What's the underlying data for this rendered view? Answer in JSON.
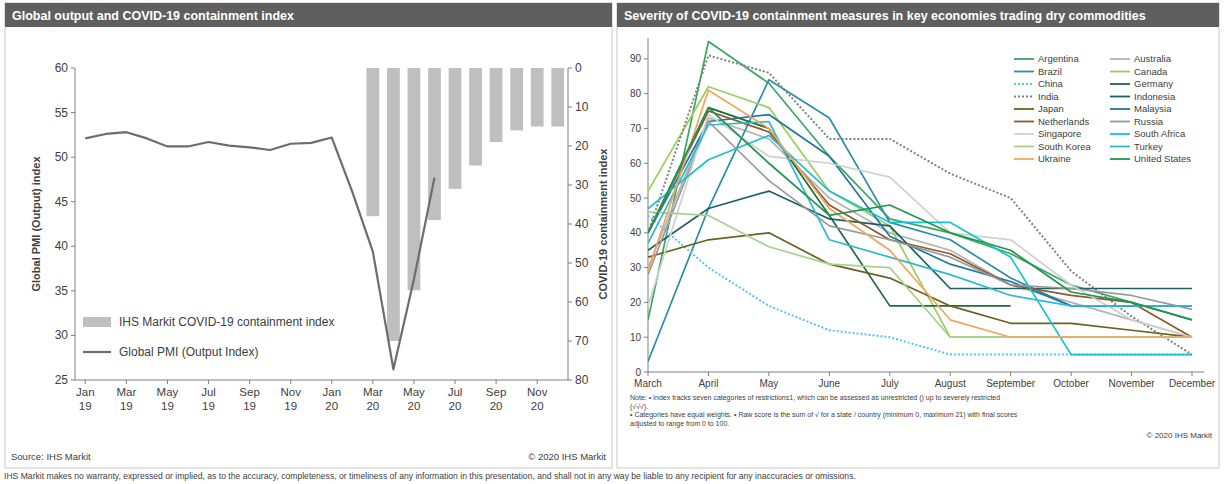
{
  "chart_data": [
    {
      "type": "bar",
      "title": "Global output and COVID-19 containment index",
      "ylabel": "Global PMI (Output) index",
      "y2label": "COVID-19 containment index",
      "source": "Source: IHS Markit",
      "copyright": "© 2020 IHS Markit",
      "categories": [
        "Jan 19",
        null,
        "Mar 19",
        null,
        "May 19",
        null,
        "Jul 19",
        null,
        "Sep 19",
        null,
        "Nov 19",
        null,
        "Jan 20",
        null,
        "Mar 20",
        null,
        "May 20",
        null,
        "Jul 20",
        null,
        "Sep 20",
        null,
        "Nov 20",
        null
      ],
      "series": [
        {
          "name": "IHS Markit COVID-19 containment index",
          "type": "bar",
          "axis": "y2",
          "color": "#bfbfbf",
          "values": [
            null,
            null,
            null,
            null,
            null,
            null,
            null,
            null,
            null,
            null,
            null,
            null,
            null,
            null,
            38,
            70,
            57,
            39,
            31,
            25,
            19,
            16,
            15,
            15
          ]
        },
        {
          "name": "Global PMI (Output Index)",
          "type": "line",
          "color": "#6d6d6d",
          "values": [
            52.1,
            52.6,
            52.8,
            52.1,
            51.2,
            51.2,
            51.7,
            51.3,
            51.1,
            50.8,
            51.5,
            51.6,
            52.2,
            46.1,
            39.4,
            26.2,
            36.3,
            47.7,
            null,
            null,
            null,
            null,
            null,
            null
          ]
        }
      ],
      "ylim": [
        25,
        60
      ],
      "yticks": [
        25,
        30,
        35,
        40,
        45,
        50,
        55,
        60
      ],
      "y2lim": [
        80,
        0
      ],
      "y2ticks": [
        0,
        10,
        20,
        30,
        40,
        50,
        60,
        70,
        80
      ],
      "legend": "bottom-left"
    },
    {
      "type": "line",
      "title": "Severity of COVID-19 containment measures in key economies trading dry commodities",
      "categories": [
        "March",
        "April",
        "May",
        "June",
        "July",
        "August",
        "September",
        "October",
        "November",
        "December"
      ],
      "series": [
        {
          "name": "Argentina",
          "color": "#3aa860",
          "values": [
            15,
            95,
            83,
            62,
            44,
            40,
            34,
            25,
            20,
            15
          ]
        },
        {
          "name": "Australia",
          "color": "#b3b3b3",
          "values": [
            30,
            73,
            67,
            50,
            40,
            35,
            25,
            20,
            15,
            10
          ]
        },
        {
          "name": "Brazil",
          "color": "#2b8ea6",
          "values": [
            3,
            47,
            84,
            73,
            43,
            38,
            27,
            19,
            19,
            19
          ]
        },
        {
          "name": "Canada",
          "color": "#9acd5a",
          "values": [
            52,
            82,
            76,
            52,
            42,
            10,
            10,
            null,
            null,
            null
          ]
        },
        {
          "name": "China",
          "color": "#55c4ee",
          "line_style": "dotted",
          "values": [
            45,
            30,
            19,
            12,
            10,
            5,
            5,
            5,
            5,
            5
          ]
        },
        {
          "name": "Germany",
          "color": "#1d6b3b",
          "values": [
            40,
            76,
            70,
            45,
            19,
            19,
            19,
            null,
            null,
            null
          ]
        },
        {
          "name": "India",
          "color": "#808080",
          "line_style": "dotted",
          "values": [
            40,
            91,
            86,
            67,
            67,
            57,
            50,
            29,
            16,
            5
          ]
        },
        {
          "name": "Indonesia",
          "color": "#1e5f66",
          "values": [
            35,
            47,
            52,
            44,
            42,
            24,
            24,
            24,
            24,
            24
          ]
        },
        {
          "name": "Japan",
          "color": "#6b6020",
          "values": [
            33,
            38,
            40,
            31,
            27,
            19,
            14,
            14,
            12,
            10
          ]
        },
        {
          "name": "Malaysia",
          "color": "#23779a",
          "values": [
            40,
            72,
            74,
            62,
            39,
            31,
            26,
            19,
            19,
            19
          ]
        },
        {
          "name": "Netherlands",
          "color": "#8c5a2e",
          "values": [
            40,
            75,
            69,
            48,
            38,
            34,
            25,
            22,
            20,
            10
          ]
        },
        {
          "name": "Russia",
          "color": "#999999",
          "values": [
            28,
            72,
            55,
            42,
            38,
            33,
            25,
            24,
            22,
            18
          ]
        },
        {
          "name": "Singapore",
          "color": "#d0d0d0",
          "values": [
            19,
            74,
            62,
            60,
            56,
            40,
            38,
            25,
            15,
            10
          ]
        },
        {
          "name": "South Africa",
          "color": "#19c2cc",
          "values": [
            47,
            61,
            68,
            52,
            43,
            43,
            33,
            5,
            5,
            5
          ]
        },
        {
          "name": "South Korea",
          "color": "#a9d18e",
          "values": [
            46,
            45,
            36,
            31,
            30,
            10,
            10,
            10,
            10,
            10
          ]
        },
        {
          "name": "Turkey",
          "color": "#30b8d0",
          "values": [
            37,
            71,
            72,
            38,
            33,
            28,
            22,
            19,
            19,
            19
          ]
        },
        {
          "name": "Ukraine",
          "color": "#f2a55e",
          "values": [
            29,
            81,
            70,
            47,
            35,
            15,
            10,
            10,
            10,
            10
          ]
        },
        {
          "name": "United States",
          "color": "#23954f",
          "values": [
            40,
            76,
            60,
            45,
            48,
            40,
            35,
            23,
            20,
            15
          ]
        }
      ],
      "ylim": [
        0,
        96
      ],
      "yticks": [
        0,
        10,
        20,
        30,
        40,
        50,
        60,
        70,
        80,
        90
      ],
      "legend": "top-right",
      "notes": [
        "Note: • Index tracks seven categories of restrictions1, which can be assessed as unrestricted () up to severely restricted",
        "(√√√).",
        "• Categories have equal weights. • Raw score is the sum of √ for a state / country (minimum 0, maximum 21) with final scores",
        "adjusted to range from 0 to 100."
      ],
      "copyright": "© 2020 IHS Markit"
    }
  ],
  "footer": "IHS Markit makes no warranty, expressed or implied, as to the accuracy, completeness, or timeliness of any information in this presentation, and shall not in any way be liable to any recipient for any inaccuracies or omissions."
}
